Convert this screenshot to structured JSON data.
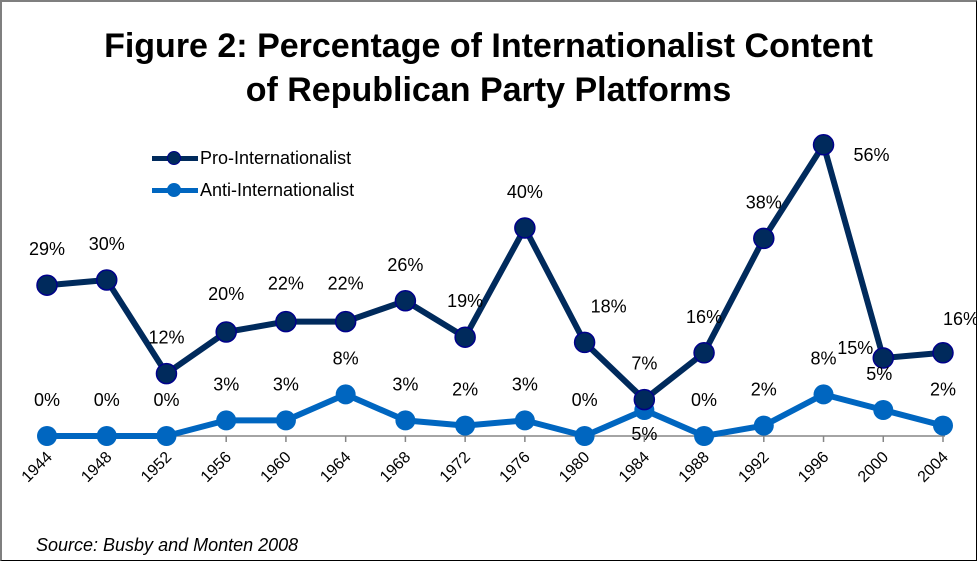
{
  "chart_data": {
    "type": "line",
    "title": "Figure 2: Percentage of Internationalist Content of Republican Party Platforms",
    "title_lines": [
      "Figure 2: Percentage of Internationalist Content",
      "of Republican Party Platforms"
    ],
    "xlabel": "",
    "ylabel": "",
    "x": [
      "1944",
      "1948",
      "1952",
      "1956",
      "1960",
      "1964",
      "1968",
      "1972",
      "1976",
      "1980",
      "1984",
      "1988",
      "1992",
      "1996",
      "2000",
      "2004"
    ],
    "ylim": [
      0,
      56
    ],
    "grid": false,
    "legend_position": "top-left",
    "series": [
      {
        "name": "Pro-Internationalist",
        "color": "#002a5c",
        "values": [
          29,
          30,
          12,
          20,
          22,
          22,
          26,
          19,
          40,
          18,
          7,
          16,
          38,
          56,
          15,
          16
        ],
        "labels": [
          "29%",
          "30%",
          "12%",
          "20%",
          "22%",
          "22%",
          "26%",
          "19%",
          "40%",
          "18%",
          "7%",
          "16%",
          "38%",
          "56%",
          "15%",
          "16%"
        ]
      },
      {
        "name": "Anti-Internationalist",
        "color": "#0066c0",
        "values": [
          0,
          0,
          0,
          3,
          3,
          8,
          3,
          2,
          3,
          0,
          5,
          0,
          2,
          8,
          5,
          2
        ],
        "labels": [
          "0%",
          "0%",
          "0%",
          "3%",
          "3%",
          "8%",
          "3%",
          "2%",
          "3%",
          "0%",
          "5%",
          "0%",
          "2%",
          "8%",
          "5%",
          "2%"
        ]
      }
    ]
  },
  "legend": {
    "items": [
      "Pro-Internationalist",
      "Anti-Internationalist"
    ]
  },
  "source": "Source: Busby and Monten 2008"
}
